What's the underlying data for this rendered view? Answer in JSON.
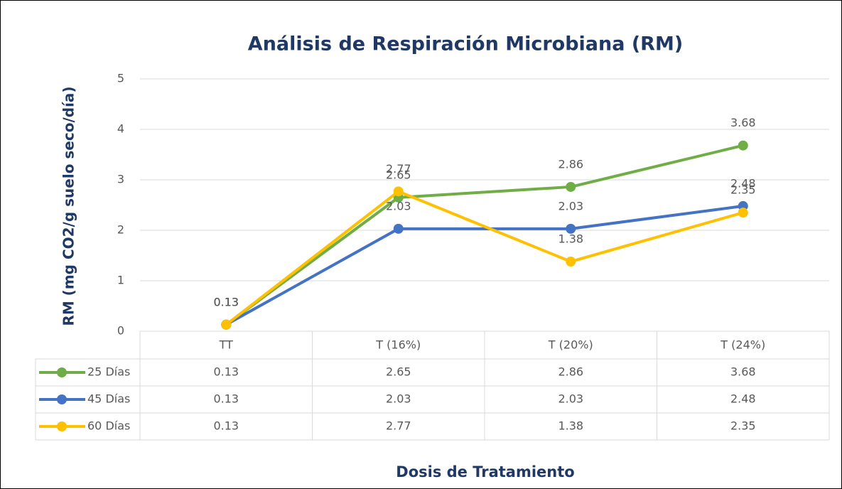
{
  "chart_data": {
    "type": "line",
    "title": "Análisis de Respiración Microbiana (RM)",
    "y_axis_label": "RM (mg CO2/g suelo seco/día)",
    "x_axis_label": "Dosis de Tratamiento",
    "categories": [
      "TT",
      "T (16%)",
      "T (20%)",
      "T (24%)"
    ],
    "series": [
      {
        "name": "25 Días",
        "color": "#70ad47",
        "values": [
          0.13,
          2.65,
          2.86,
          3.68
        ]
      },
      {
        "name": "45 Días",
        "color": "#4472c4",
        "values": [
          0.13,
          2.03,
          2.03,
          2.48
        ]
      },
      {
        "name": "60 Días",
        "color": "#ffc000",
        "values": [
          0.13,
          2.77,
          1.38,
          2.35
        ]
      }
    ],
    "ylim": [
      0,
      5
    ],
    "yticks": [
      0,
      1,
      2,
      3,
      4,
      5
    ],
    "grid": true,
    "data_table": true
  }
}
